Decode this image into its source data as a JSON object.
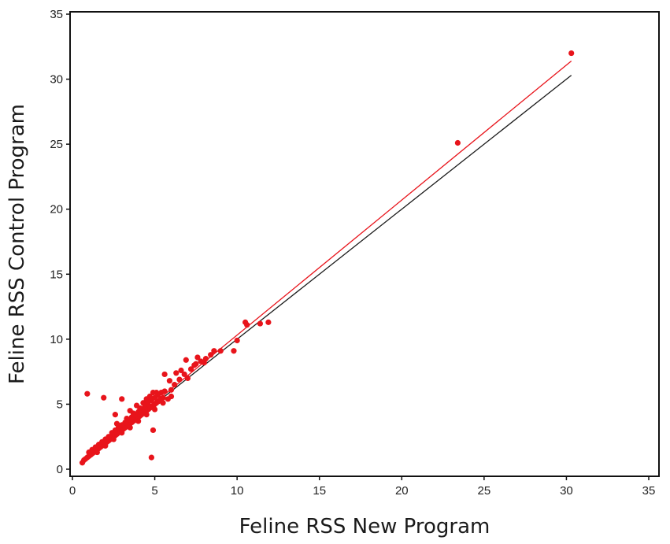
{
  "chart_data": {
    "type": "scatter",
    "title": "",
    "xlabel": "Feline RSS New Program",
    "ylabel": "Feline RSS Control Program",
    "xlim": [
      0,
      35
    ],
    "ylim": [
      0,
      35
    ],
    "xticks": [
      0,
      5,
      10,
      15,
      20,
      25,
      30,
      35
    ],
    "yticks": [
      0,
      5,
      10,
      15,
      20,
      25,
      30,
      35
    ],
    "grid": false,
    "legend": "none",
    "series": [
      {
        "color": "#e8141b",
        "points": [
          [
            0.6,
            0.5
          ],
          [
            0.7,
            0.7
          ],
          [
            0.8,
            0.8
          ],
          [
            0.9,
            0.9
          ],
          [
            1.0,
            1.0
          ],
          [
            1.1,
            1.1
          ],
          [
            1.2,
            1.2
          ],
          [
            1.3,
            1.3
          ],
          [
            1.4,
            1.4
          ],
          [
            1.5,
            1.5
          ],
          [
            1.6,
            1.6
          ],
          [
            1.7,
            1.7
          ],
          [
            1.8,
            1.8
          ],
          [
            1.9,
            1.9
          ],
          [
            2.0,
            2.0
          ],
          [
            2.1,
            2.1
          ],
          [
            2.2,
            2.2
          ],
          [
            2.3,
            2.3
          ],
          [
            2.4,
            2.4
          ],
          [
            2.5,
            2.5
          ],
          [
            2.6,
            2.6
          ],
          [
            2.7,
            2.7
          ],
          [
            2.8,
            2.8
          ],
          [
            2.9,
            2.9
          ],
          [
            3.0,
            3.0
          ],
          [
            3.1,
            3.1
          ],
          [
            3.2,
            3.2
          ],
          [
            3.3,
            3.3
          ],
          [
            3.4,
            3.4
          ],
          [
            3.5,
            3.5
          ],
          [
            3.6,
            3.6
          ],
          [
            3.7,
            3.7
          ],
          [
            3.8,
            3.8
          ],
          [
            3.9,
            3.9
          ],
          [
            4.0,
            4.0
          ],
          [
            4.1,
            4.1
          ],
          [
            4.2,
            4.2
          ],
          [
            4.3,
            4.3
          ],
          [
            4.4,
            4.4
          ],
          [
            4.5,
            4.5
          ],
          [
            4.6,
            4.6
          ],
          [
            4.7,
            4.7
          ],
          [
            4.8,
            4.8
          ],
          [
            4.9,
            4.9
          ],
          [
            5.0,
            5.0
          ],
          [
            5.1,
            5.1
          ],
          [
            5.2,
            5.2
          ],
          [
            5.3,
            5.3
          ],
          [
            5.4,
            5.4
          ],
          [
            5.5,
            5.5
          ],
          [
            1.0,
            1.3
          ],
          [
            1.2,
            1.5
          ],
          [
            1.4,
            1.7
          ],
          [
            1.6,
            1.9
          ],
          [
            1.8,
            2.1
          ],
          [
            2.0,
            2.3
          ],
          [
            2.2,
            2.5
          ],
          [
            2.4,
            2.8
          ],
          [
            2.6,
            3.0
          ],
          [
            2.8,
            3.2
          ],
          [
            3.0,
            3.4
          ],
          [
            3.2,
            3.6
          ],
          [
            3.4,
            3.8
          ],
          [
            3.6,
            4.0
          ],
          [
            3.8,
            4.2
          ],
          [
            4.0,
            4.4
          ],
          [
            4.2,
            4.6
          ],
          [
            4.4,
            4.8
          ],
          [
            4.6,
            5.0
          ],
          [
            4.8,
            5.3
          ],
          [
            5.0,
            5.5
          ],
          [
            5.2,
            5.7
          ],
          [
            5.4,
            5.9
          ],
          [
            5.6,
            6.0
          ],
          [
            1.5,
            1.3
          ],
          [
            2.0,
            1.8
          ],
          [
            2.5,
            2.3
          ],
          [
            3.0,
            2.8
          ],
          [
            3.5,
            3.2
          ],
          [
            4.0,
            3.7
          ],
          [
            4.5,
            4.2
          ],
          [
            5.0,
            4.6
          ],
          [
            5.5,
            5.1
          ],
          [
            3.3,
            3.9
          ],
          [
            3.7,
            4.3
          ],
          [
            4.1,
            4.7
          ],
          [
            4.3,
            5.1
          ],
          [
            4.7,
            5.6
          ],
          [
            4.9,
            5.9
          ],
          [
            3.5,
            4.5
          ],
          [
            2.7,
            3.5
          ],
          [
            3.9,
            4.9
          ],
          [
            4.5,
            5.4
          ],
          [
            5.8,
            5.4
          ],
          [
            6.0,
            6.1
          ],
          [
            6.2,
            6.5
          ],
          [
            6.5,
            6.9
          ],
          [
            6.8,
            7.3
          ],
          [
            7.0,
            7.0
          ],
          [
            6.3,
            7.4
          ],
          [
            6.6,
            7.6
          ],
          [
            7.2,
            7.7
          ],
          [
            7.5,
            8.1
          ],
          [
            7.8,
            8.3
          ],
          [
            8.1,
            8.5
          ],
          [
            8.4,
            8.8
          ],
          [
            8.6,
            9.1
          ],
          [
            5.6,
            7.3
          ],
          [
            5.9,
            6.8
          ],
          [
            6.9,
            8.4
          ],
          [
            7.6,
            8.6
          ],
          [
            9.0,
            9.1
          ],
          [
            9.8,
            9.1
          ],
          [
            10.0,
            9.9
          ],
          [
            10.5,
            11.3
          ],
          [
            10.6,
            11.1
          ],
          [
            11.4,
            11.2
          ],
          [
            11.9,
            11.3
          ],
          [
            7.4,
            8.0
          ],
          [
            8.0,
            8.2
          ],
          [
            0.9,
            5.8
          ],
          [
            1.9,
            5.5
          ],
          [
            3.0,
            5.4
          ],
          [
            2.6,
            4.2
          ],
          [
            4.9,
            3.0
          ],
          [
            4.8,
            0.9
          ],
          [
            6.0,
            5.6
          ],
          [
            5.3,
            5.3
          ],
          [
            5.1,
            5.9
          ],
          [
            4.6,
            5.2
          ],
          [
            23.4,
            25.1
          ],
          [
            30.3,
            32.0
          ]
        ]
      }
    ],
    "lines": [
      {
        "color": "#e8141b",
        "from": [
          0.5,
          0.45
        ],
        "to": [
          30.3,
          31.4
        ]
      },
      {
        "color": "#1a1a1a",
        "from": [
          0.5,
          0.5
        ],
        "to": [
          30.3,
          30.3
        ]
      }
    ]
  }
}
